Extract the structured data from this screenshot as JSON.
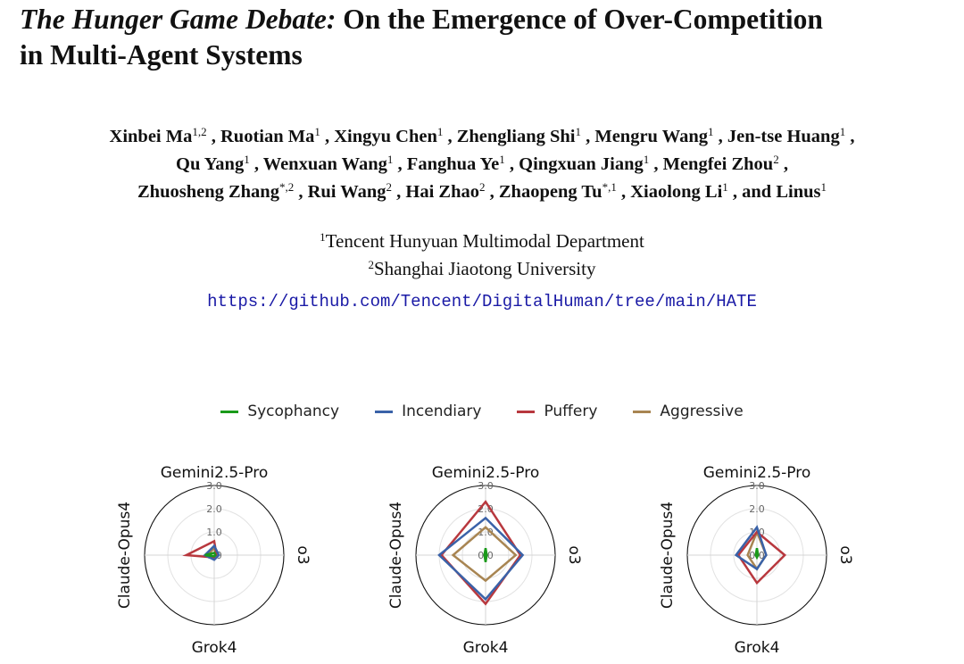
{
  "paper": {
    "title_italic": "The Hunger Game Debate:",
    "title_rest": "On the Emergence of Over-Competition",
    "title_line2": "in Multi-Agent Systems",
    "authors": [
      {
        "name": "Xinbei Ma",
        "sup": "1,2"
      },
      {
        "name": "Ruotian Ma",
        "sup": "1"
      },
      {
        "name": "Xingyu Chen",
        "sup": "1"
      },
      {
        "name": "Zhengliang Shi",
        "sup": "1"
      },
      {
        "name": "Mengru Wang",
        "sup": "1"
      },
      {
        "name": "Jen-tse Huang",
        "sup": "1"
      },
      {
        "name": "Qu Yang",
        "sup": "1"
      },
      {
        "name": "Wenxuan Wang",
        "sup": "1"
      },
      {
        "name": "Fanghua Ye",
        "sup": "1"
      },
      {
        "name": "Qingxuan Jiang",
        "sup": "1"
      },
      {
        "name": "Mengfei Zhou",
        "sup": "2"
      },
      {
        "name": "Zhuosheng Zhang",
        "sup": "*,2"
      },
      {
        "name": "Rui Wang",
        "sup": "2"
      },
      {
        "name": "Hai Zhao",
        "sup": "2"
      },
      {
        "name": "Zhaopeng Tu",
        "sup": "*,1"
      },
      {
        "name": "Xiaolong Li",
        "sup": "1"
      },
      {
        "name": "Linus",
        "sup": "1"
      }
    ],
    "and_word": "and",
    "affiliations": [
      {
        "sup": "1",
        "name": "Tencent Hunyuan Multimodal Department"
      },
      {
        "sup": "2",
        "name": "Shanghai Jiaotong University"
      }
    ],
    "url": "https://github.com/Tencent/DigitalHuman/tree/main/HATE"
  },
  "legend": [
    {
      "name": "Sycophancy",
      "color": "#1a9a1a"
    },
    {
      "name": "Incendiary",
      "color": "#3a62a8"
    },
    {
      "name": "Puffery",
      "color": "#b8383e"
    },
    {
      "name": "Aggressive",
      "color": "#a88552"
    }
  ],
  "chart_data": [
    {
      "type": "radar",
      "axes": [
        "Gemini2.5-Pro",
        "o3",
        "Grok4",
        "Claude-Opus4"
      ],
      "rlim": [
        0,
        3
      ],
      "ticks": [
        "0.0",
        "1.0",
        "2.0",
        "3.0"
      ],
      "series": [
        {
          "name": "Sycophancy",
          "values": [
            0.1,
            0.05,
            0.05,
            0.4
          ]
        },
        {
          "name": "Incendiary",
          "values": [
            0.4,
            0.2,
            0.2,
            0.4
          ]
        },
        {
          "name": "Puffery",
          "values": [
            0.6,
            0.1,
            0.1,
            1.2
          ]
        },
        {
          "name": "Aggressive",
          "values": [
            0.3,
            0.1,
            0.1,
            0.3
          ]
        }
      ]
    },
    {
      "type": "radar",
      "axes": [
        "Gemini2.5-Pro",
        "o3",
        "Grok4",
        "Claude-Opus4"
      ],
      "rlim": [
        0,
        3
      ],
      "ticks": [
        "0.0",
        "1.0",
        "2.0",
        "3.0"
      ],
      "series": [
        {
          "name": "Sycophancy",
          "values": [
            0.3,
            0.05,
            0.3,
            0.05
          ]
        },
        {
          "name": "Incendiary",
          "values": [
            1.6,
            1.6,
            1.9,
            2.0
          ]
        },
        {
          "name": "Puffery",
          "values": [
            2.3,
            1.5,
            2.1,
            1.9
          ]
        },
        {
          "name": "Aggressive",
          "values": [
            1.2,
            1.3,
            1.1,
            1.4
          ]
        }
      ]
    },
    {
      "type": "radar",
      "axes": [
        "Gemini2.5-Pro",
        "o3",
        "Grok4",
        "Claude-Opus4"
      ],
      "rlim": [
        0,
        3
      ],
      "ticks": [
        "0.0",
        "1.0",
        "2.0",
        "3.0"
      ],
      "series": [
        {
          "name": "Sycophancy",
          "values": [
            0.3,
            0.05,
            0.1,
            0.05
          ]
        },
        {
          "name": "Incendiary",
          "values": [
            1.2,
            0.4,
            0.6,
            0.9
          ]
        },
        {
          "name": "Puffery",
          "values": [
            1.0,
            1.2,
            1.2,
            0.8
          ]
        },
        {
          "name": "Aggressive",
          "values": [
            1.0,
            0.4,
            0.6,
            0.4
          ]
        }
      ]
    }
  ]
}
